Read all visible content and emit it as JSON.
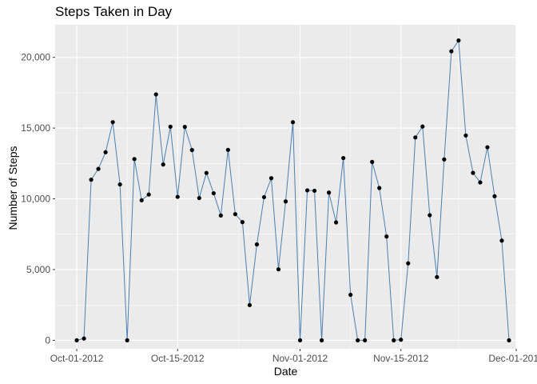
{
  "chart_data": {
    "type": "line",
    "title": "Steps Taken in Day",
    "xlabel": "Date",
    "ylabel": "Number of Steps",
    "x_tick_labels": [
      "Oct-01-2012",
      "Oct-15-2012",
      "Nov-01-2012",
      "Nov-15-2012",
      "Dec-01-2012"
    ],
    "x_tick_dates": [
      "2012-10-01",
      "2012-10-15",
      "2012-11-01",
      "2012-11-15",
      "2012-12-01"
    ],
    "xlim": [
      "2012-09-28",
      "2012-12-01"
    ],
    "y_tick_labels": [
      "0",
      "5,000",
      "10,000",
      "15,000",
      "20,000"
    ],
    "y_ticks": [
      0,
      5000,
      10000,
      15000,
      20000
    ],
    "ylim": [
      -600,
      22300
    ],
    "grid": true,
    "line_color": "#4a7fb0",
    "point_color": "#000000",
    "panel_background": "#ebebeb",
    "x": [
      "2012-10-01",
      "2012-10-02",
      "2012-10-03",
      "2012-10-04",
      "2012-10-05",
      "2012-10-06",
      "2012-10-07",
      "2012-10-08",
      "2012-10-09",
      "2012-10-10",
      "2012-10-11",
      "2012-10-12",
      "2012-10-13",
      "2012-10-14",
      "2012-10-15",
      "2012-10-16",
      "2012-10-17",
      "2012-10-18",
      "2012-10-19",
      "2012-10-20",
      "2012-10-21",
      "2012-10-22",
      "2012-10-23",
      "2012-10-24",
      "2012-10-25",
      "2012-10-26",
      "2012-10-27",
      "2012-10-28",
      "2012-10-29",
      "2012-10-30",
      "2012-10-31",
      "2012-11-01",
      "2012-11-02",
      "2012-11-03",
      "2012-11-04",
      "2012-11-05",
      "2012-11-06",
      "2012-11-07",
      "2012-11-08",
      "2012-11-09",
      "2012-11-10",
      "2012-11-11",
      "2012-11-12",
      "2012-11-13",
      "2012-11-14",
      "2012-11-15",
      "2012-11-16",
      "2012-11-17",
      "2012-11-18",
      "2012-11-19",
      "2012-11-20",
      "2012-11-21",
      "2012-11-22",
      "2012-11-23",
      "2012-11-24",
      "2012-11-25",
      "2012-11-26",
      "2012-11-27",
      "2012-11-28",
      "2012-11-29",
      "2012-11-30"
    ],
    "values": [
      0,
      126,
      11352,
      12116,
      13294,
      15420,
      11015,
      0,
      12811,
      9900,
      10304,
      17382,
      12426,
      15098,
      10139,
      15084,
      13452,
      10056,
      11829,
      10395,
      8821,
      13460,
      8918,
      8355,
      2492,
      6778,
      10119,
      11458,
      5018,
      9819,
      15414,
      0,
      10600,
      10571,
      0,
      10439,
      8334,
      12883,
      3219,
      0,
      0,
      12608,
      10765,
      7336,
      0,
      41,
      5441,
      14339,
      15110,
      8841,
      4472,
      12787,
      20427,
      21194,
      14478,
      11834,
      11162,
      13646,
      10183,
      7047,
      0
    ]
  }
}
